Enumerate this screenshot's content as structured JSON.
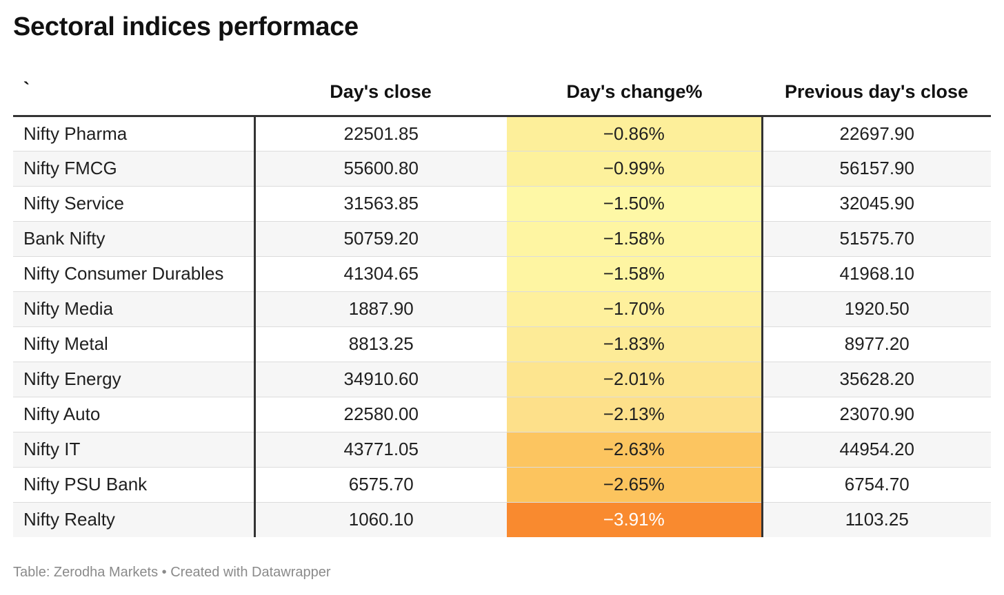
{
  "title": "Sectoral indices performace",
  "footer": "Table: Zerodha Markets • Created with Datawrapper",
  "chart_data": {
    "type": "table",
    "title": "Sectoral indices performace",
    "columns": [
      "`",
      "Day's close",
      "Day's change%",
      "Previous day's close"
    ],
    "rows": [
      {
        "index": "Nifty Pharma",
        "close": "22501.85",
        "change": "−0.86%",
        "change_value": -0.86,
        "prev_close": "22697.90"
      },
      {
        "index": "Nifty FMCG",
        "close": "55600.80",
        "change": "−0.99%",
        "change_value": -0.99,
        "prev_close": "56157.90"
      },
      {
        "index": "Nifty Service",
        "close": "31563.85",
        "change": "−1.50%",
        "change_value": -1.5,
        "prev_close": "32045.90"
      },
      {
        "index": "Bank Nifty",
        "close": "50759.20",
        "change": "−1.58%",
        "change_value": -1.58,
        "prev_close": "51575.70"
      },
      {
        "index": "Nifty Consumer Durables",
        "close": "41304.65",
        "change": "−1.58%",
        "change_value": -1.58,
        "prev_close": "41968.10"
      },
      {
        "index": "Nifty Media",
        "close": "1887.90",
        "change": "−1.70%",
        "change_value": -1.7,
        "prev_close": "1920.50"
      },
      {
        "index": "Nifty Metal",
        "close": "8813.25",
        "change": "−1.83%",
        "change_value": -1.83,
        "prev_close": "8977.20"
      },
      {
        "index": "Nifty Energy",
        "close": "34910.60",
        "change": "−2.01%",
        "change_value": -2.01,
        "prev_close": "35628.20"
      },
      {
        "index": "Nifty Auto",
        "close": "22580.00",
        "change": "−2.13%",
        "change_value": -2.13,
        "prev_close": "23070.90"
      },
      {
        "index": "Nifty IT",
        "close": "43771.05",
        "change": "−2.63%",
        "change_value": -2.63,
        "prev_close": "44954.20"
      },
      {
        "index": "Nifty PSU Bank",
        "close": "6575.70",
        "change": "−2.65%",
        "change_value": -2.65,
        "prev_close": "6754.70"
      },
      {
        "index": "Nifty Realty",
        "close": "1060.10",
        "change": "−3.91%",
        "change_value": -3.91,
        "prev_close": "1103.25"
      }
    ],
    "heatmap_scale": {
      "column": "Day's change%",
      "stops": [
        {
          "value": -0.86,
          "color": "#fdef9a"
        },
        {
          "value": -1.5,
          "color": "#fef8a6"
        },
        {
          "value": -2.13,
          "color": "#fde08a"
        },
        {
          "value": -2.65,
          "color": "#fcc45e"
        },
        {
          "value": -3.91,
          "color": "#f98a2f"
        }
      ]
    }
  }
}
